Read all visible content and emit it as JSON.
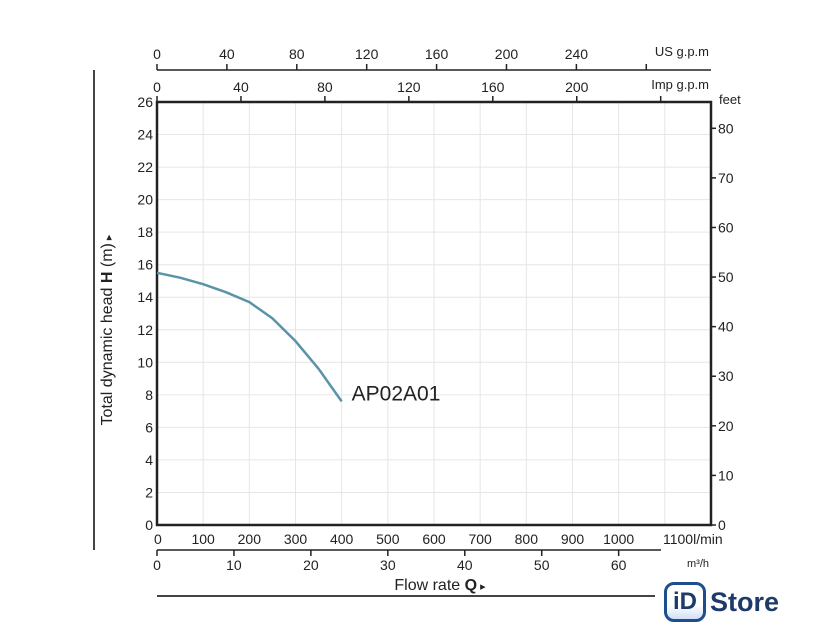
{
  "chart_data": {
    "type": "line",
    "title": "",
    "xlabel": "Flow rate Q",
    "ylabel": "Total dynamic head H (m)",
    "xlim": [
      0,
      1200
    ],
    "ylim": [
      0,
      26
    ],
    "x_unit": "l/min",
    "x_ticks": [
      0,
      100,
      200,
      300,
      400,
      500,
      600,
      700,
      800,
      900,
      1000,
      1100
    ],
    "y_ticks": [
      0,
      2,
      4,
      6,
      8,
      10,
      12,
      14,
      16,
      18,
      20,
      22,
      24,
      26
    ],
    "grid": true,
    "series": [
      {
        "name": "AP02A01",
        "x": [
          0,
          50,
          100,
          150,
          200,
          250,
          300,
          350,
          400
        ],
        "y": [
          15.5,
          15.2,
          14.8,
          14.3,
          13.7,
          12.7,
          11.3,
          9.6,
          7.6
        ],
        "color": "#5b94a8"
      }
    ],
    "secondary_axes": {
      "feet": {
        "label": "feet",
        "ticks": [
          0,
          10,
          20,
          30,
          40,
          50,
          60,
          70,
          80
        ]
      },
      "us_gpm": {
        "label": "US g.p.m",
        "ticks": [
          0,
          40,
          80,
          120,
          160,
          200,
          240
        ]
      },
      "imp_gpm": {
        "label": "Imp g.p.m",
        "ticks": [
          0,
          40,
          80,
          120,
          160,
          200
        ]
      },
      "m3h": {
        "label": "m³/h",
        "ticks": [
          0,
          10,
          20,
          30,
          40,
          50,
          60
        ]
      }
    }
  },
  "labels": {
    "ylabel_prefix": "Total dynamic head ",
    "ylabel_bold": "H",
    "ylabel_suffix": " (m)",
    "xlabel_prefix": "Flow rate ",
    "xlabel_bold": "Q",
    "lpm_unit": "l/min"
  },
  "logo": {
    "mark": "iD",
    "text": "Store"
  }
}
